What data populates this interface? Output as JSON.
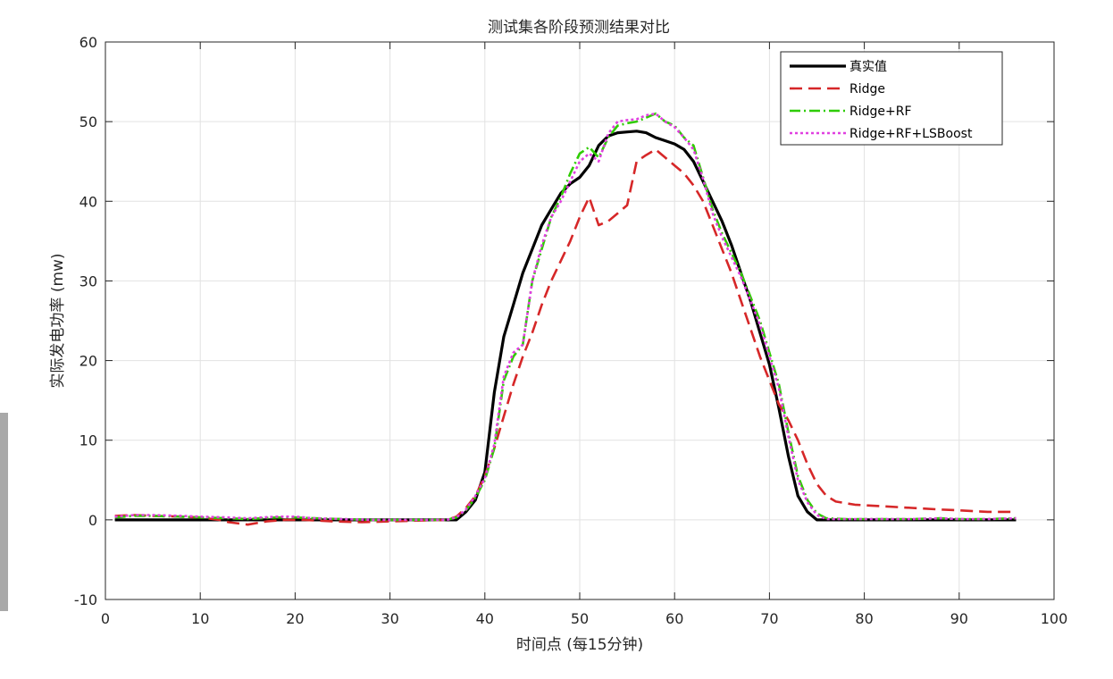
{
  "chart_data": {
    "type": "line",
    "title": "测试集各阶段预测结果对比",
    "xlabel": "时间点 (每15分钟)",
    "ylabel": "实际发电功率 (mw)",
    "xlim": [
      0,
      100
    ],
    "ylim": [
      -10,
      60
    ],
    "xticks": [
      0,
      10,
      20,
      30,
      40,
      50,
      60,
      70,
      80,
      90,
      100
    ],
    "yticks": [
      -10,
      0,
      10,
      20,
      30,
      40,
      50,
      60
    ],
    "grid": true,
    "legend_position": "top-right",
    "series": [
      {
        "name": "真实值",
        "color": "#000000",
        "style": "solid",
        "points": [
          [
            1,
            0
          ],
          [
            5,
            0
          ],
          [
            10,
            0
          ],
          [
            15,
            0
          ],
          [
            20,
            0
          ],
          [
            25,
            0
          ],
          [
            30,
            0
          ],
          [
            35,
            0
          ],
          [
            37,
            0
          ],
          [
            38,
            1
          ],
          [
            39,
            2.5
          ],
          [
            40,
            6
          ],
          [
            41,
            16
          ],
          [
            42,
            23
          ],
          [
            43,
            27
          ],
          [
            44,
            31
          ],
          [
            45,
            34
          ],
          [
            46,
            37
          ],
          [
            47,
            39
          ],
          [
            48,
            41
          ],
          [
            49,
            42.2
          ],
          [
            50,
            43
          ],
          [
            51,
            44.5
          ],
          [
            52,
            47
          ],
          [
            53,
            48.2
          ],
          [
            54,
            48.6
          ],
          [
            55,
            48.7
          ],
          [
            56,
            48.8
          ],
          [
            57,
            48.6
          ],
          [
            58,
            48
          ],
          [
            59,
            47.6
          ],
          [
            60,
            47.2
          ],
          [
            61,
            46.5
          ],
          [
            62,
            45
          ],
          [
            63,
            42.5
          ],
          [
            64,
            40
          ],
          [
            65,
            37.5
          ],
          [
            66,
            34.5
          ],
          [
            67,
            31
          ],
          [
            68,
            27.5
          ],
          [
            69,
            23.5
          ],
          [
            70,
            19.5
          ],
          [
            71,
            14
          ],
          [
            72,
            8
          ],
          [
            73,
            3
          ],
          [
            74,
            1
          ],
          [
            75,
            0
          ],
          [
            76,
            0
          ],
          [
            80,
            0
          ],
          [
            85,
            0
          ],
          [
            90,
            0
          ],
          [
            95,
            0
          ],
          [
            96,
            0
          ]
        ]
      },
      {
        "name": "Ridge",
        "color": "#d62728",
        "style": "dashed",
        "points": [
          [
            1,
            0.5
          ],
          [
            3,
            0.6
          ],
          [
            5,
            0.5
          ],
          [
            8,
            0.4
          ],
          [
            10,
            0.3
          ],
          [
            12,
            0
          ],
          [
            13,
            -0.3
          ],
          [
            15,
            -0.6
          ],
          [
            17,
            -0.2
          ],
          [
            19,
            0
          ],
          [
            21,
            0
          ],
          [
            24,
            -0.2
          ],
          [
            27,
            -0.3
          ],
          [
            30,
            -0.2
          ],
          [
            33,
            -0.1
          ],
          [
            36,
            0
          ],
          [
            37,
            0.4
          ],
          [
            38,
            1.5
          ],
          [
            39,
            3
          ],
          [
            40,
            5.5
          ],
          [
            41,
            9
          ],
          [
            42,
            13
          ],
          [
            43,
            17
          ],
          [
            44,
            20.5
          ],
          [
            45,
            23.5
          ],
          [
            46,
            27
          ],
          [
            47,
            30
          ],
          [
            48,
            32.5
          ],
          [
            49,
            35
          ],
          [
            50,
            38
          ],
          [
            51,
            40.5
          ],
          [
            52,
            37
          ],
          [
            53,
            37.5
          ],
          [
            54,
            38.5
          ],
          [
            55,
            39.5
          ],
          [
            56,
            45
          ],
          [
            57,
            45.8
          ],
          [
            58,
            46.5
          ],
          [
            59,
            45.5
          ],
          [
            60,
            44.5
          ],
          [
            61,
            43.5
          ],
          [
            62,
            42
          ],
          [
            63,
            40
          ],
          [
            64,
            37
          ],
          [
            65,
            34
          ],
          [
            66,
            31
          ],
          [
            67,
            27.5
          ],
          [
            68,
            24
          ],
          [
            69,
            20.5
          ],
          [
            70,
            17.5
          ],
          [
            71,
            14.5
          ],
          [
            72,
            12.5
          ],
          [
            73,
            10
          ],
          [
            74,
            7
          ],
          [
            75,
            4.5
          ],
          [
            76,
            3
          ],
          [
            77,
            2.3
          ],
          [
            79,
            1.9
          ],
          [
            82,
            1.7
          ],
          [
            85,
            1.5
          ],
          [
            88,
            1.3
          ],
          [
            90,
            1.2
          ],
          [
            93,
            1.0
          ],
          [
            96,
            1.0
          ]
        ]
      },
      {
        "name": "Ridge+RF",
        "color": "#2ecc00",
        "style": "dashdot",
        "points": [
          [
            1,
            0.3
          ],
          [
            3,
            0.5
          ],
          [
            5,
            0.5
          ],
          [
            8,
            0.4
          ],
          [
            10,
            0.3
          ],
          [
            13,
            0.2
          ],
          [
            15,
            0.1
          ],
          [
            18,
            0.3
          ],
          [
            20,
            0.3
          ],
          [
            22,
            0.2
          ],
          [
            25,
            0.1
          ],
          [
            28,
            0
          ],
          [
            30,
            0
          ],
          [
            33,
            0
          ],
          [
            36,
            0
          ],
          [
            37,
            0.3
          ],
          [
            38,
            1.2
          ],
          [
            39,
            2.8
          ],
          [
            40,
            5
          ],
          [
            41,
            9
          ],
          [
            42,
            17.5
          ],
          [
            43,
            20.5
          ],
          [
            44,
            22
          ],
          [
            45,
            30
          ],
          [
            46,
            34
          ],
          [
            47,
            38
          ],
          [
            48,
            40.5
          ],
          [
            49,
            43.5
          ],
          [
            50,
            46
          ],
          [
            51,
            46.8
          ],
          [
            52,
            45.5
          ],
          [
            53,
            48
          ],
          [
            54,
            49.5
          ],
          [
            55,
            49.8
          ],
          [
            56,
            50
          ],
          [
            57,
            50.5
          ],
          [
            58,
            51
          ],
          [
            59,
            50
          ],
          [
            60,
            49.5
          ],
          [
            61,
            48
          ],
          [
            62,
            47
          ],
          [
            63,
            43
          ],
          [
            64,
            39
          ],
          [
            65,
            36
          ],
          [
            66,
            33.5
          ],
          [
            67,
            31
          ],
          [
            68,
            28
          ],
          [
            69,
            25
          ],
          [
            70,
            21
          ],
          [
            71,
            17
          ],
          [
            72,
            11
          ],
          [
            73,
            5.5
          ],
          [
            74,
            2.5
          ],
          [
            75,
            0.8
          ],
          [
            76,
            0.2
          ],
          [
            78,
            0.1
          ],
          [
            82,
            0.1
          ],
          [
            85,
            0.1
          ],
          [
            88,
            0.2
          ],
          [
            90,
            0.1
          ],
          [
            93,
            0.1
          ],
          [
            96,
            0.2
          ]
        ]
      },
      {
        "name": "Ridge+RF+LSBoost",
        "color": "#e040e0",
        "style": "dotted",
        "points": [
          [
            1,
            0.4
          ],
          [
            3,
            0.6
          ],
          [
            5,
            0.6
          ],
          [
            8,
            0.5
          ],
          [
            10,
            0.4
          ],
          [
            13,
            0.3
          ],
          [
            15,
            0.2
          ],
          [
            18,
            0.4
          ],
          [
            20,
            0.4
          ],
          [
            22,
            0.2
          ],
          [
            25,
            0.1
          ],
          [
            28,
            0
          ],
          [
            30,
            0
          ],
          [
            33,
            0
          ],
          [
            36,
            0
          ],
          [
            37,
            0.3
          ],
          [
            38,
            1.3
          ],
          [
            39,
            3
          ],
          [
            40,
            5.2
          ],
          [
            41,
            9.5
          ],
          [
            42,
            18
          ],
          [
            43,
            21
          ],
          [
            44,
            22
          ],
          [
            45,
            30
          ],
          [
            46,
            34.5
          ],
          [
            47,
            38
          ],
          [
            48,
            40
          ],
          [
            49,
            42.5
          ],
          [
            50,
            45
          ],
          [
            51,
            46
          ],
          [
            52,
            45
          ],
          [
            53,
            48.5
          ],
          [
            54,
            50
          ],
          [
            55,
            50.2
          ],
          [
            56,
            50.3
          ],
          [
            57,
            50.8
          ],
          [
            58,
            51
          ],
          [
            59,
            50
          ],
          [
            60,
            49.3
          ],
          [
            61,
            48
          ],
          [
            62,
            46.5
          ],
          [
            63,
            42.8
          ],
          [
            64,
            38.5
          ],
          [
            65,
            35.5
          ],
          [
            66,
            33
          ],
          [
            67,
            30.5
          ],
          [
            68,
            27.5
          ],
          [
            69,
            24.5
          ],
          [
            70,
            20.5
          ],
          [
            71,
            16.5
          ],
          [
            72,
            10.5
          ],
          [
            73,
            5
          ],
          [
            74,
            2.2
          ],
          [
            75,
            0.6
          ],
          [
            76,
            0.1
          ],
          [
            78,
            0.1
          ],
          [
            82,
            0.1
          ],
          [
            85,
            0.1
          ],
          [
            88,
            0.2
          ],
          [
            90,
            0.1
          ],
          [
            93,
            0.1
          ],
          [
            96,
            0.2
          ]
        ]
      }
    ]
  }
}
